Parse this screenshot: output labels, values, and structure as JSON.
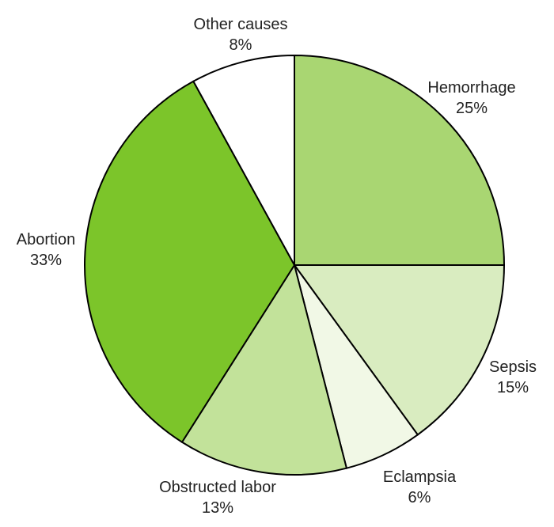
{
  "chart_data": {
    "type": "pie",
    "title": "",
    "start": "12 o'clock",
    "direction": "clockwise",
    "slices": [
      {
        "label": "Hemorrhage",
        "value": 25,
        "value_label": "25%",
        "color": "#a9d672"
      },
      {
        "label": "Sepsis",
        "value": 15,
        "value_label": "15%",
        "color": "#d9ecc0"
      },
      {
        "label": "Eclampsia",
        "value": 6,
        "value_label": "6%",
        "color": "#f1f8e6"
      },
      {
        "label": "Obstructed labor",
        "value": 13,
        "value_label": "13%",
        "color": "#c2e29a"
      },
      {
        "label": "Abortion",
        "value": 33,
        "value_label": "33%",
        "color": "#7cc52a"
      },
      {
        "label": "Other causes",
        "value": 8,
        "value_label": "8%",
        "color": "#ffffff"
      }
    ]
  }
}
